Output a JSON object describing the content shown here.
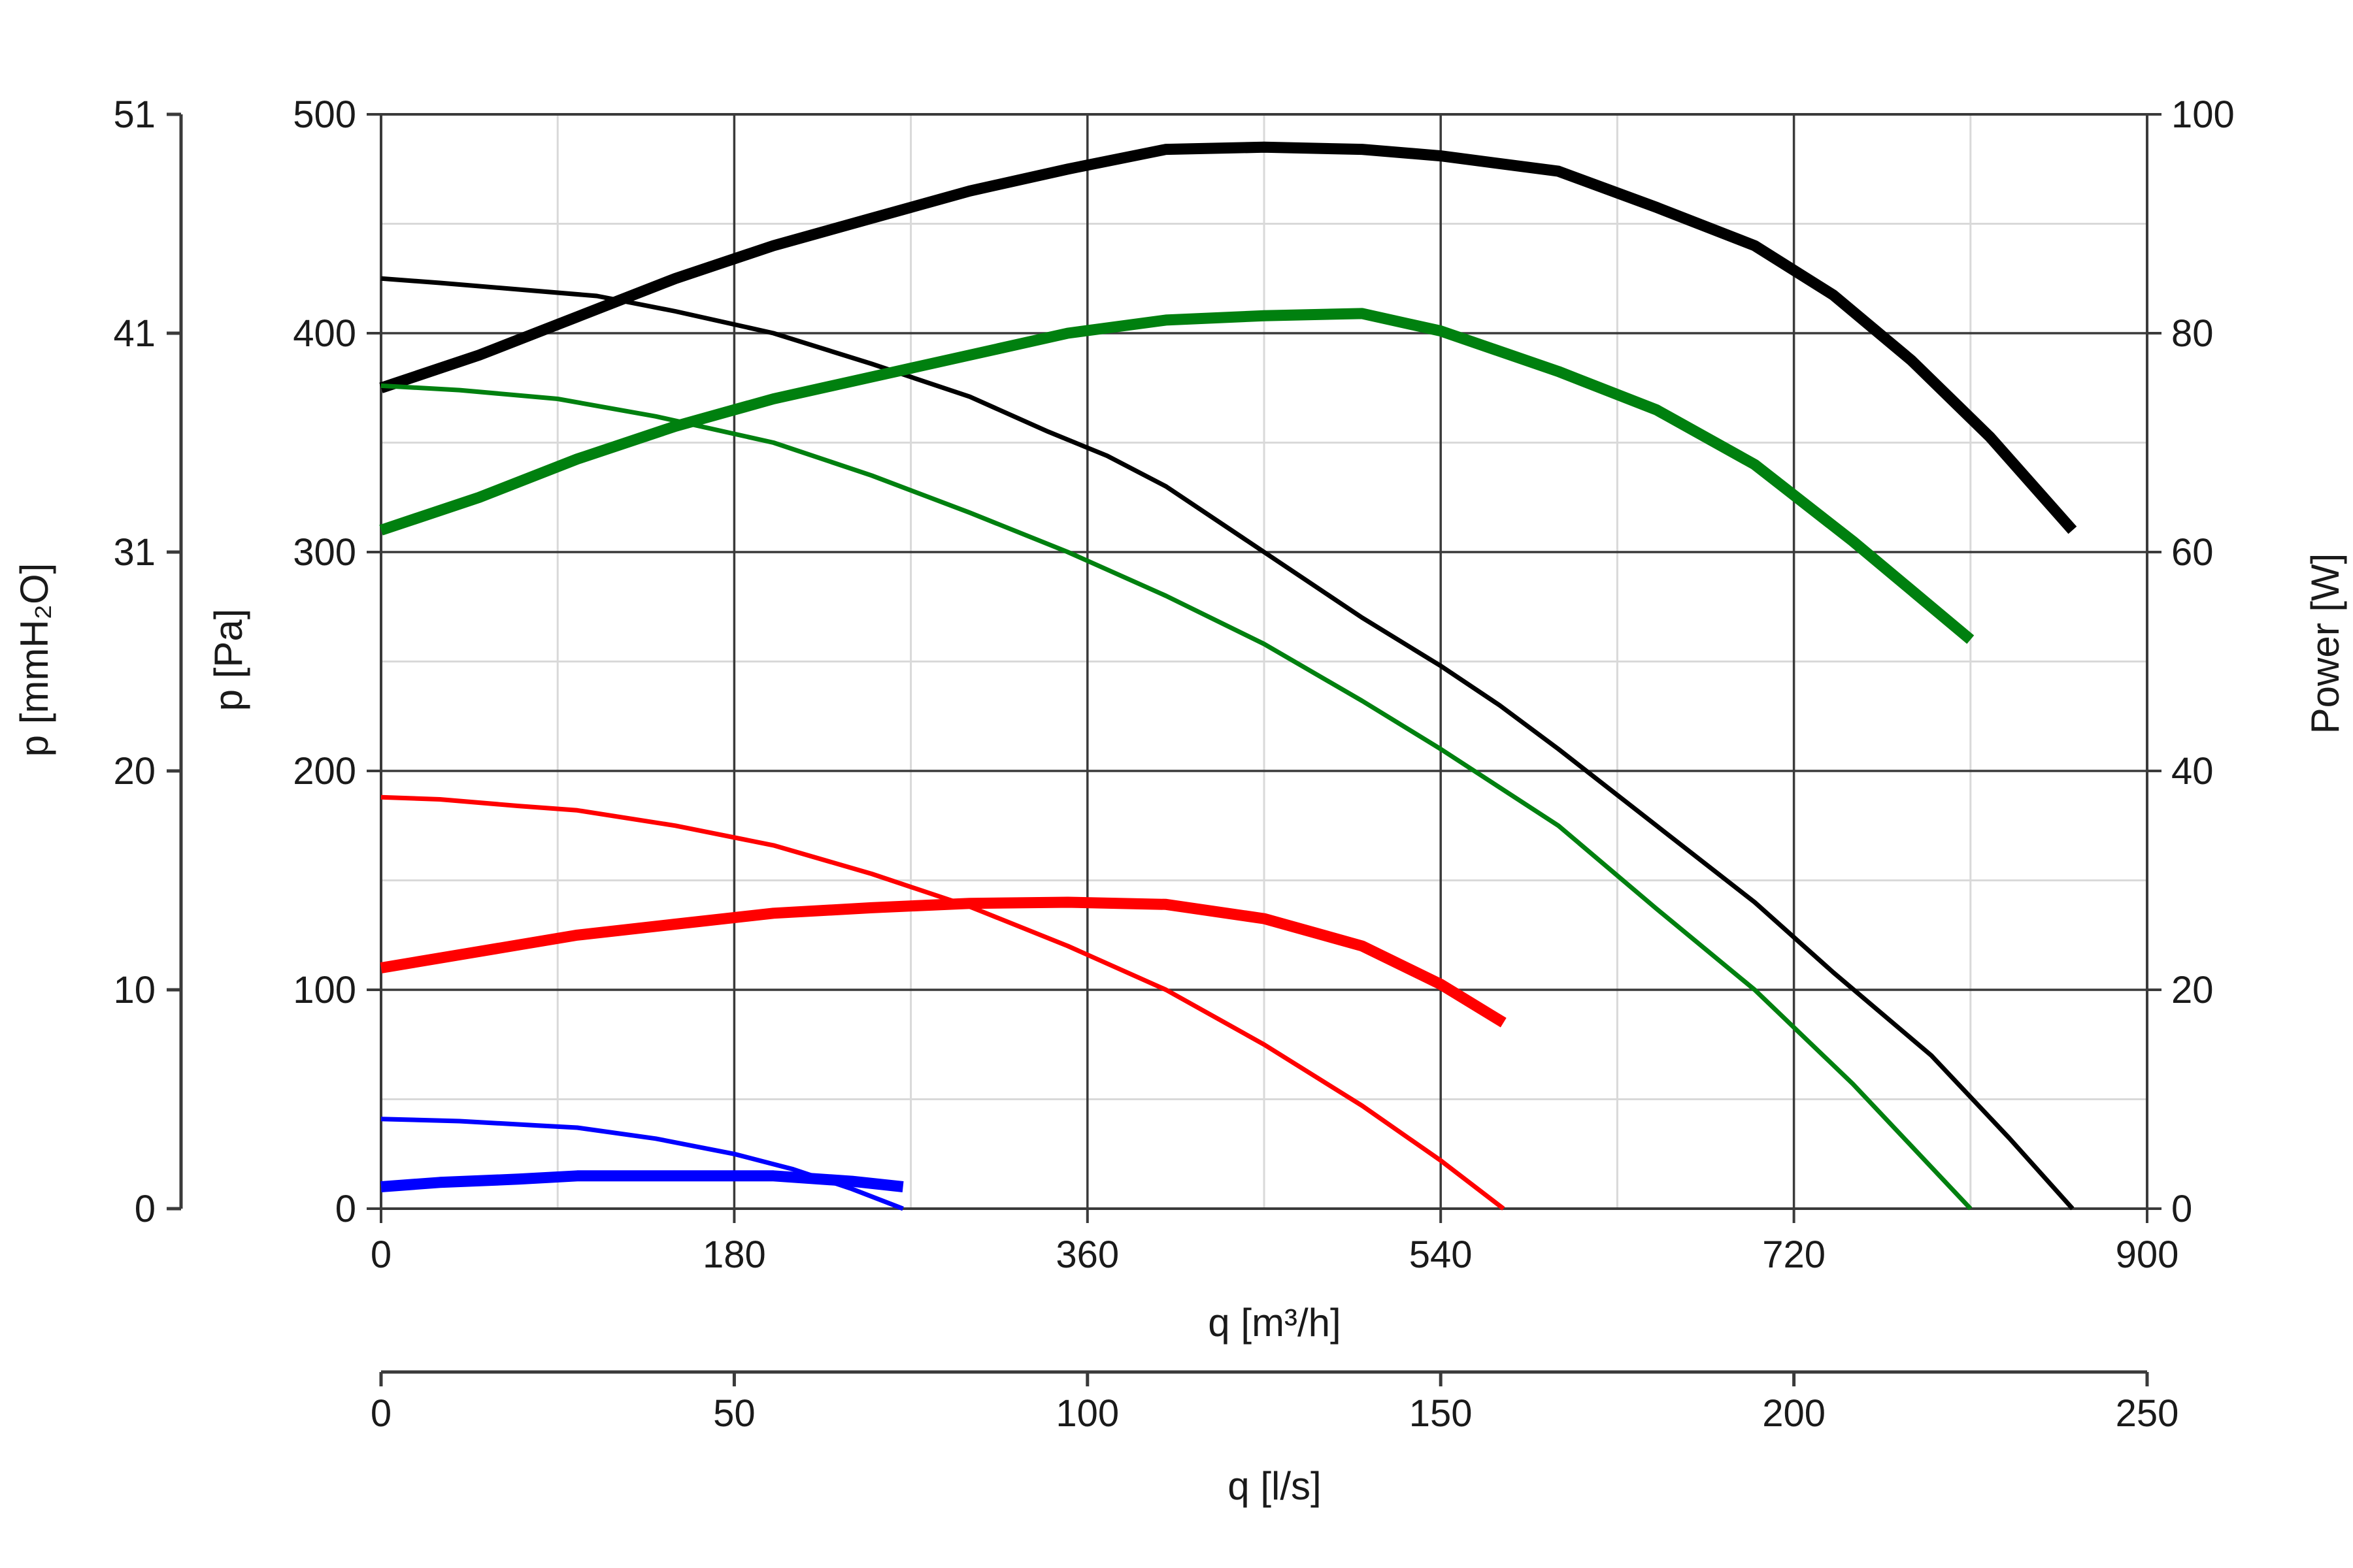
{
  "chart_data": {
    "type": "line",
    "title": "",
    "xlabel": "q [m³/h]",
    "x2label": "q [l/s]",
    "ylabel": "p [Pa]",
    "y_outer_label": "p [mmH₂O]",
    "y2label": "Power [W]",
    "xlim": [
      0,
      900
    ],
    "ylim": [
      0,
      500
    ],
    "y2lim": [
      0,
      100
    ],
    "x_ticks": [
      "0",
      "180",
      "360",
      "540",
      "720",
      "900"
    ],
    "x_minor_ticks": [
      90,
      270,
      450,
      630,
      810
    ],
    "x2_ticks": [
      "0",
      "50",
      "100",
      "150",
      "200",
      "250"
    ],
    "y_ticks": [
      "0",
      "100",
      "200",
      "300",
      "400",
      "500"
    ],
    "y_outer_ticks": [
      "0",
      "10",
      "20",
      "31",
      "41",
      "51"
    ],
    "y2_ticks": [
      "0",
      "20",
      "40",
      "60",
      "80",
      "100"
    ],
    "grid": true,
    "series": [
      {
        "color": "#000000",
        "kind": "pressure",
        "axis": "left",
        "x": [
          0,
          30,
          70,
          110,
          150,
          200,
          250,
          300,
          340,
          370,
          400,
          450,
          500,
          540,
          570,
          600,
          650,
          700,
          740,
          790,
          830,
          862
        ],
        "y": [
          425,
          423,
          420,
          417,
          410,
          400,
          386,
          371,
          355,
          344,
          330,
          300,
          270,
          248,
          230,
          210,
          175,
          140,
          108,
          70,
          32,
          0
        ]
      },
      {
        "color": "#000000",
        "kind": "power",
        "axis": "right",
        "x": [
          0,
          50,
          100,
          150,
          200,
          250,
          300,
          350,
          400,
          450,
          500,
          540,
          600,
          650,
          700,
          740,
          780,
          820,
          862
        ],
        "y": [
          75,
          78,
          81.5,
          85,
          88,
          90.5,
          93,
          95,
          96.8,
          97,
          96.8,
          96.2,
          94.8,
          91.5,
          88,
          83.5,
          77.5,
          70.5,
          62
        ]
      },
      {
        "color": "#00800f",
        "kind": "pressure",
        "axis": "left",
        "x": [
          0,
          40,
          90,
          140,
          200,
          250,
          300,
          350,
          400,
          450,
          500,
          540,
          600,
          650,
          700,
          750,
          810
        ],
        "y": [
          376,
          374,
          370,
          362,
          350,
          335,
          318,
          300,
          280,
          258,
          232,
          210,
          175,
          137,
          100,
          57,
          0
        ]
      },
      {
        "color": "#00800f",
        "kind": "power",
        "axis": "right",
        "x": [
          0,
          50,
          100,
          150,
          200,
          250,
          300,
          350,
          400,
          450,
          500,
          540,
          600,
          650,
          700,
          750,
          810
        ],
        "y": [
          62,
          65,
          68.5,
          71.5,
          74,
          76,
          78,
          80,
          81.2,
          81.6,
          81.8,
          80.2,
          76.5,
          73,
          68,
          61,
          52
        ]
      },
      {
        "color": "#ff0000",
        "kind": "pressure",
        "axis": "left",
        "x": [
          0,
          30,
          70,
          100,
          150,
          200,
          250,
          300,
          350,
          400,
          450,
          500,
          540,
          572
        ],
        "y": [
          188,
          187,
          184,
          182,
          175,
          166,
          153,
          138,
          120,
          100,
          75,
          47,
          22,
          0
        ]
      },
      {
        "color": "#ff0000",
        "kind": "power",
        "axis": "right",
        "x": [
          0,
          50,
          100,
          150,
          200,
          250,
          300,
          350,
          400,
          450,
          500,
          540,
          572
        ],
        "y": [
          22,
          23.5,
          25,
          26,
          27,
          27.5,
          27.9,
          28,
          27.8,
          26.5,
          24,
          20.5,
          17
        ]
      },
      {
        "color": "#0000ff",
        "kind": "pressure",
        "axis": "left",
        "x": [
          0,
          40,
          80,
          100,
          140,
          180,
          210,
          240,
          266
        ],
        "y": [
          41,
          40,
          38,
          37,
          32,
          25,
          18,
          9,
          0
        ]
      },
      {
        "color": "#0000ff",
        "kind": "power",
        "axis": "right",
        "x": [
          0,
          30,
          70,
          100,
          150,
          200,
          240,
          266
        ],
        "y": [
          2,
          2.4,
          2.7,
          3,
          3,
          3,
          2.5,
          2
        ]
      }
    ]
  }
}
